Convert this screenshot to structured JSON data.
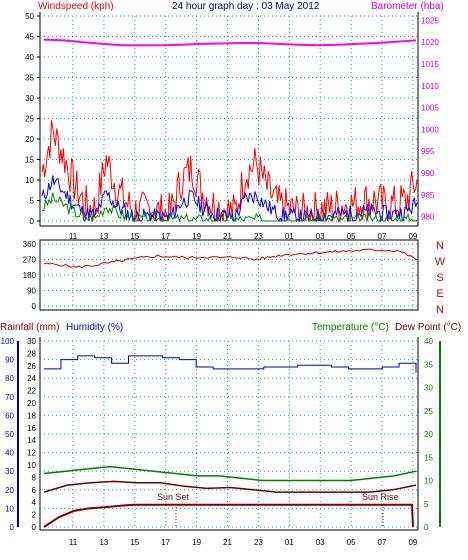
{
  "header": {
    "windspeed_label": "Windspeed (kph)",
    "title": "24 hour graph day : 03 May 2012",
    "barometer_label": "Barometer (hba)"
  },
  "panel3": {
    "rainfall_label": "Rainfall (mm)",
    "humidity_label": "Humidity (%)",
    "temperature_label": "Temperature (°C)",
    "dewpoint_label": "Dew Point (°C)",
    "sunset_label": "Sun Set",
    "sunrise_label": "Sun Rise"
  },
  "colors": {
    "wind": "#ff0000",
    "gust_avg": "#0000ff",
    "wind_green": "#008000",
    "barometer": "#ff00ff",
    "direction": "#cc0000",
    "humidity": "#0000c0",
    "temperature": "#008000",
    "dewpoint": "#660000",
    "rainfall": "#800000",
    "grid": "#00aaaa"
  },
  "chart_data": [
    {
      "type": "line",
      "title": "24 hour graph day : 03 May 2012",
      "x_ticks": [
        "11",
        "13",
        "15",
        "17",
        "19",
        "21",
        "23",
        "01",
        "03",
        "05",
        "07",
        "09"
      ],
      "y_left": {
        "label": "Windspeed (kph)",
        "ticks": [
          0,
          5,
          10,
          15,
          20,
          25,
          30,
          35,
          40,
          45,
          50
        ],
        "range": [
          0,
          50
        ]
      },
      "y_right": {
        "label": "Barometer (hba)",
        "ticks": [
          980,
          985,
          990,
          995,
          1000,
          1005,
          1010,
          1015,
          1020,
          1025
        ],
        "range": [
          979,
          1026
        ]
      },
      "series": [
        {
          "name": "Windspeed (kph)",
          "values": [
            12,
            22,
            16,
            9,
            4,
            3,
            15,
            8,
            4,
            2,
            3,
            2,
            2,
            10,
            13,
            7,
            4,
            3,
            2,
            12,
            14,
            8,
            4,
            3,
            2,
            2,
            3,
            3,
            4,
            4,
            5,
            5,
            4,
            4,
            5,
            10
          ]
        },
        {
          "name": "Barometer (hba)",
          "values": [
            1020.6,
            1020.4,
            1020.0,
            1019.6,
            1019.3,
            1019.3,
            1019.3,
            1019.4,
            1019.6,
            1019.7,
            1019.8,
            1019.8,
            1019.6,
            1019.4,
            1019.3,
            1019.4,
            1019.6,
            1019.8,
            1020.1,
            1020.4
          ]
        }
      ]
    },
    {
      "type": "line",
      "x_ticks": [
        "11",
        "13",
        "15",
        "17",
        "19",
        "21",
        "23",
        "01",
        "03",
        "05",
        "07",
        "09"
      ],
      "y_left": {
        "ticks": [
          0,
          90,
          180,
          270,
          360
        ],
        "range": [
          0,
          360
        ]
      },
      "y_right": {
        "ticks": [
          "N",
          "W",
          "S",
          "E",
          "N"
        ]
      },
      "series": [
        {
          "values": [
            245,
            240,
            225,
            235,
            250,
            265,
            280,
            290,
            285,
            280,
            285,
            280,
            285,
            270,
            285,
            300,
            305,
            310,
            315,
            320,
            325,
            325,
            320,
            270
          ]
        }
      ]
    },
    {
      "type": "line",
      "x_ticks": [
        "11",
        "13",
        "15",
        "17",
        "19",
        "21",
        "23",
        "01",
        "03",
        "05",
        "07",
        "09"
      ],
      "y_humidity": {
        "label": "Humidity (%)",
        "ticks": [
          0,
          10,
          20,
          30,
          40,
          50,
          60,
          70,
          80,
          90,
          100
        ],
        "range": [
          0,
          100
        ]
      },
      "y_rainfall": {
        "label": "Rainfall (mm)",
        "ticks": [
          0,
          2,
          4,
          6,
          8,
          10,
          12,
          14,
          16,
          18,
          20,
          22,
          24,
          26,
          28,
          30
        ],
        "range": [
          0,
          30
        ]
      },
      "y_temperature": {
        "label": "Temperature (°C)",
        "ticks": [
          0,
          5,
          10,
          15,
          20,
          25,
          30,
          35,
          40
        ],
        "range": [
          0,
          40
        ]
      },
      "series": [
        {
          "name": "Humidity (%)",
          "values": [
            85,
            90,
            92,
            91,
            88,
            92,
            92,
            91,
            90,
            86,
            85,
            85,
            85,
            86,
            86,
            87,
            87,
            86,
            85,
            85,
            86,
            88,
            83
          ]
        },
        {
          "name": "Temperature (°C)",
          "values": [
            11.5,
            12,
            12.5,
            13,
            12.5,
            12,
            11.5,
            11,
            11,
            10.5,
            10,
            10,
            10,
            10,
            10,
            10.5,
            11,
            12
          ]
        },
        {
          "name": "Dew Point (°C)",
          "values": [
            7.5,
            9,
            9.5,
            9.8,
            9.5,
            9.5,
            8.8,
            8.3,
            8.5,
            8,
            7.5,
            7.5,
            7.5,
            7.5,
            7.5,
            8.0,
            9
          ]
        },
        {
          "name": "Rainfall (mm)",
          "values": [
            0,
            1.6,
            2.6,
            3.0,
            3.2,
            3.4,
            3.6,
            3.6,
            3.6,
            3.6,
            3.6,
            3.6,
            3.6,
            3.6,
            3.6,
            0
          ]
        }
      ]
    }
  ]
}
